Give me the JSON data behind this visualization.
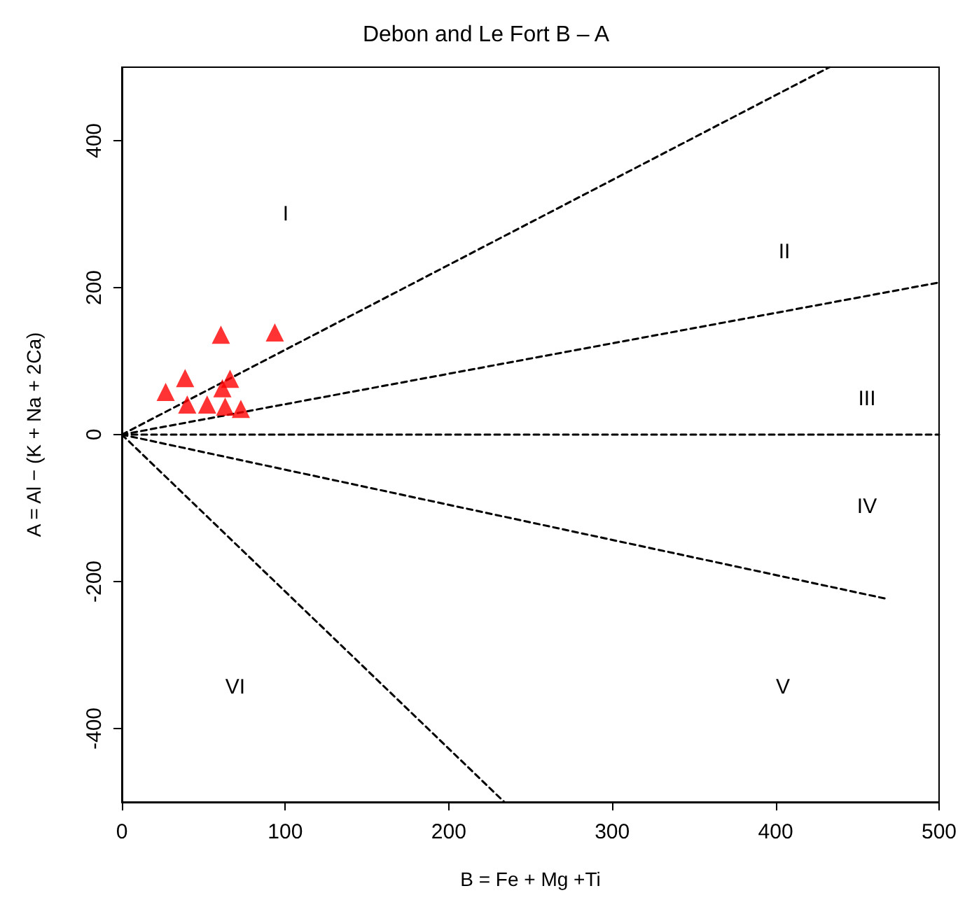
{
  "chart_data": {
    "type": "scatter",
    "title": "Debon and Le Fort B – A",
    "xlabel": "B = Fe + Mg +Ti",
    "ylabel": "A = Al − (K + Na + 2Ca)",
    "xlim": [
      0,
      500
    ],
    "xticks": [
      0,
      100,
      200,
      300,
      400,
      500
    ],
    "ylim": [
      -500,
      500
    ],
    "yticks": [
      -400,
      -200,
      0,
      200,
      400
    ],
    "grid": false,
    "marker": "triangle",
    "series": [
      {
        "color": "#ff0000",
        "x": [
          60.6,
          93.6,
          26.8,
          38.7,
          66.2,
          61.5,
          40,
          52.2,
          63.2,
          72.8
        ],
        "values": [
          136,
          139,
          58,
          77,
          76,
          63,
          41,
          41,
          38,
          35
        ]
      },
      {
        "type": "line",
        "color": "#000000",
        "line_style": "dashed",
        "marker": "none",
        "x": [
          0,
          433
        ],
        "values": [
          0,
          500
        ]
      },
      {
        "type": "line",
        "color": "#000000",
        "line_style": "dashed",
        "marker": "none",
        "x": [
          0,
          500
        ],
        "values": [
          0,
          207
        ]
      },
      {
        "type": "line",
        "color": "#000000",
        "line_style": "dashed",
        "marker": "none",
        "x": [
          0,
          500
        ],
        "values": [
          0,
          0
        ]
      },
      {
        "type": "line",
        "color": "#000000",
        "line_style": "dashed",
        "marker": "none",
        "x": [
          0,
          469
        ],
        "values": [
          0,
          -224
        ]
      },
      {
        "type": "line",
        "color": "#000000",
        "line_style": "dashed",
        "marker": "none",
        "x": [
          0,
          234
        ],
        "values": [
          0,
          -500
        ]
      }
    ],
    "annotations": [
      "I",
      "II",
      "III",
      "IV",
      "V",
      "VI"
    ]
  }
}
